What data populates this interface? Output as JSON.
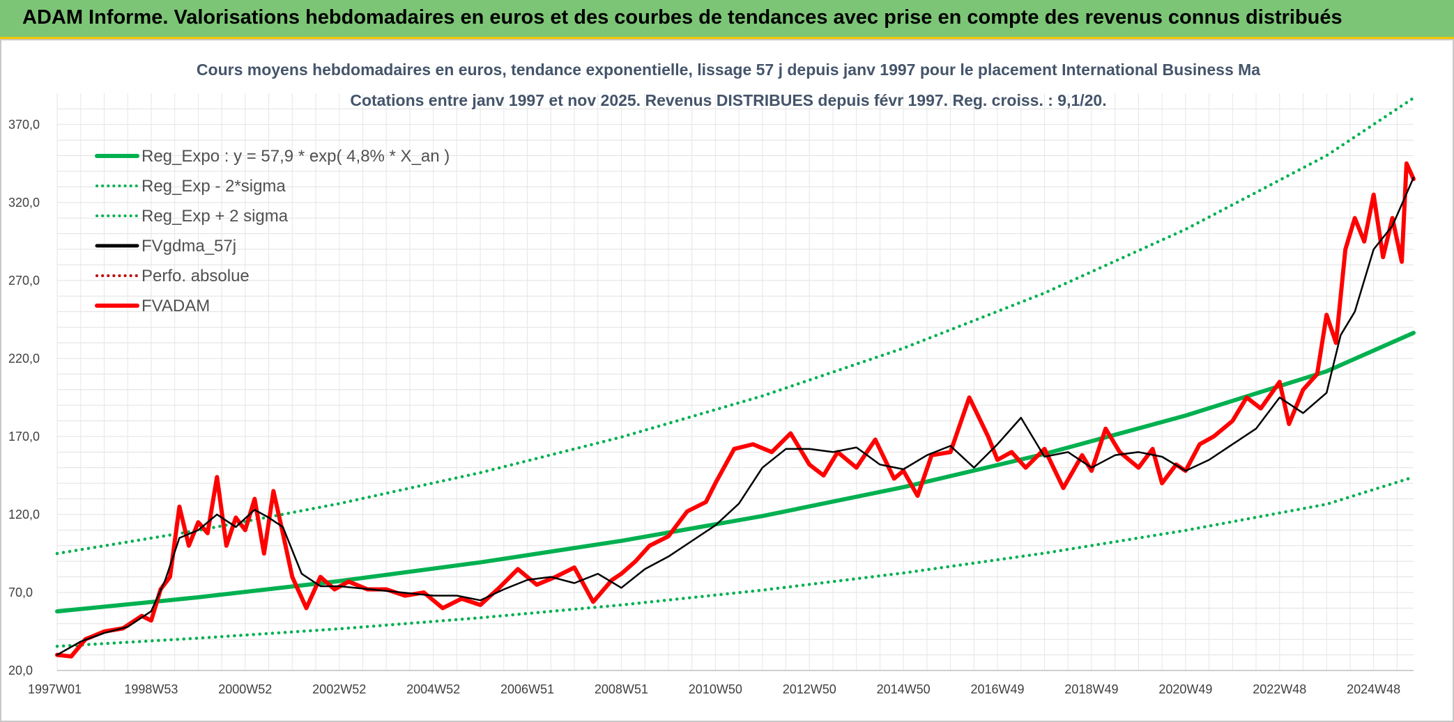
{
  "banner": {
    "title": "ADAM Informe. Valorisations hebdomadaires en euros et des courbes de tendances avec prise en compte des revenus connus distribués"
  },
  "colors": {
    "banner_bg": "#7cc576",
    "banner_border": "#f5c400",
    "reg_expo": "#00b050",
    "fvgdma": "#000000",
    "fvadam": "#ff0000",
    "perfo": "#c00000"
  },
  "chart_data": {
    "type": "line",
    "title_lines": [
      "Cours moyens hebdomadaires en euros, tendance exponentielle, lissage 57 j depuis janv 1997 pour le placement International Business Ma",
      "Cotations entre janv 1997 et nov 2025. Revenus DISTRIBUES depuis févr 1997. Reg. croiss. : 9,1/20."
    ],
    "x_range": [
      1997.0,
      2025.85
    ],
    "x_ticks": [
      {
        "label": "1997W01",
        "x": 1997.0
      },
      {
        "label": "1998W53",
        "x": 1999.0
      },
      {
        "label": "2000W52",
        "x": 2001.0
      },
      {
        "label": "2002W52",
        "x": 2003.0
      },
      {
        "label": "2004W52",
        "x": 2005.0
      },
      {
        "label": "2006W51",
        "x": 2007.0
      },
      {
        "label": "2008W51",
        "x": 2009.0
      },
      {
        "label": "2010W50",
        "x": 2011.0
      },
      {
        "label": "2012W50",
        "x": 2013.0
      },
      {
        "label": "2014W50",
        "x": 2015.0
      },
      {
        "label": "2016W49",
        "x": 2017.0
      },
      {
        "label": "2018W49",
        "x": 2019.0
      },
      {
        "label": "2020W49",
        "x": 2021.0
      },
      {
        "label": "2022W48",
        "x": 2023.0
      },
      {
        "label": "2024W48",
        "x": 2025.0
      }
    ],
    "y_range": [
      20,
      390
    ],
    "y_ticks": [
      {
        "label": "20,0",
        "y": 20
      },
      {
        "label": "70,0",
        "y": 70
      },
      {
        "label": "120,0",
        "y": 120
      },
      {
        "label": "170,0",
        "y": 170
      },
      {
        "label": "220,0",
        "y": 220
      },
      {
        "label": "270,0",
        "y": 270
      },
      {
        "label": "320,0",
        "y": 320
      },
      {
        "label": "370,0",
        "y": 370
      }
    ],
    "grid": true,
    "legend_position": "top-left",
    "series": [
      {
        "name": "Reg_Expo : y = 57,9 * exp( 4,8% *  X_an )",
        "role": "reg",
        "style": "solid-thick",
        "color": "#00b050",
        "x": [
          1997.0,
          2000.0,
          2003.0,
          2006.0,
          2009.0,
          2012.0,
          2015.0,
          2018.0,
          2021.0,
          2024.0,
          2025.85
        ],
        "y": [
          57.9,
          66.9,
          77.3,
          89.3,
          103.1,
          119.0,
          137.5,
          158.8,
          183.4,
          211.8,
          236.4
        ]
      },
      {
        "name": "Reg_Exp - 2*sigma",
        "role": "reg",
        "style": "dotted",
        "color": "#00b050",
        "x": [
          1997.0,
          2000.0,
          2003.0,
          2006.0,
          2009.0,
          2012.0,
          2015.0,
          2018.0,
          2021.0,
          2024.0,
          2025.85
        ],
        "y": [
          35.5,
          40.7,
          46.7,
          53.8,
          62.0,
          71.5,
          82.5,
          95.2,
          109.8,
          126.6,
          144.0
        ]
      },
      {
        "name": "Reg_Exp + 2 sigma",
        "role": "reg",
        "style": "dotted",
        "color": "#00b050",
        "x": [
          1997.0,
          2000.0,
          2003.0,
          2006.0,
          2009.0,
          2012.0,
          2015.0,
          2018.0,
          2021.0,
          2024.0,
          2025.85
        ],
        "y": [
          95.0,
          109.8,
          127.0,
          146.8,
          169.6,
          196.0,
          226.6,
          262.0,
          302.8,
          350.1,
          387.0
        ]
      },
      {
        "name": "FVgdma_57j",
        "role": "price",
        "style": "solid",
        "color": "#000000",
        "x": [
          1997.0,
          1997.5,
          1998.0,
          1998.5,
          1999.0,
          1999.3,
          1999.6,
          2000.0,
          2000.4,
          2000.8,
          2001.2,
          2001.5,
          2001.8,
          2002.2,
          2002.6,
          2003.0,
          2004.0,
          2005.0,
          2005.5,
          2006.0,
          2006.5,
          2007.0,
          2007.5,
          2008.0,
          2008.5,
          2009.0,
          2009.5,
          2010.0,
          2010.5,
          2011.0,
          2011.5,
          2012.0,
          2012.5,
          2013.0,
          2013.5,
          2014.0,
          2014.5,
          2015.0,
          2015.5,
          2016.0,
          2016.5,
          2017.0,
          2017.5,
          2018.0,
          2018.5,
          2019.0,
          2019.5,
          2020.0,
          2020.5,
          2021.0,
          2021.5,
          2022.0,
          2022.5,
          2023.0,
          2023.5,
          2024.0,
          2024.3,
          2024.6,
          2025.0,
          2025.4,
          2025.85
        ],
        "y": [
          30.0,
          38.5,
          44.0,
          48.0,
          58.0,
          78.0,
          105.0,
          110.0,
          120.0,
          112.0,
          123.0,
          118.0,
          112.0,
          82.0,
          74.0,
          74.0,
          71.0,
          68.0,
          68.0,
          65.0,
          72.0,
          78.0,
          80.0,
          76.0,
          82.0,
          73.0,
          85.0,
          93.0,
          103.0,
          113.0,
          127.0,
          150.0,
          162.0,
          162.0,
          160.0,
          163.0,
          152.0,
          149.0,
          158.0,
          164.0,
          150.0,
          165.0,
          182.0,
          157.0,
          160.0,
          150.0,
          158.0,
          160.0,
          157.0,
          148.0,
          155.0,
          165.0,
          175.0,
          195.0,
          185.0,
          198.0,
          235.0,
          250.0,
          290.0,
          305.0,
          336.0
        ]
      },
      {
        "name": "Perfo. absolue",
        "role": "price",
        "style": "dotted",
        "color": "#c00000",
        "x": [
          1997.0,
          1997.5,
          1998.0,
          1998.5,
          1999.0,
          1999.3,
          1999.6,
          2000.0,
          2000.4,
          2000.8,
          2001.2,
          2001.5,
          2001.8,
          2002.2,
          2002.6,
          2003.0,
          2004.0,
          2005.0,
          2005.5,
          2006.0,
          2006.5,
          2007.0,
          2007.5,
          2008.0,
          2008.5,
          2009.0,
          2009.5,
          2010.0,
          2010.5,
          2011.0,
          2011.5,
          2012.0,
          2012.5,
          2013.0,
          2013.5,
          2014.0,
          2014.5,
          2015.0,
          2015.5,
          2016.0,
          2016.5,
          2017.0,
          2017.5,
          2018.0,
          2018.5,
          2019.0,
          2019.5,
          2020.0,
          2020.5,
          2021.0,
          2021.5,
          2022.0,
          2022.5,
          2023.0,
          2023.5,
          2024.0,
          2024.3,
          2024.6,
          2025.0,
          2025.4,
          2025.85
        ],
        "y": [
          30.0,
          38.5,
          44.0,
          48.0,
          58.0,
          78.0,
          105.0,
          110.0,
          120.0,
          112.0,
          123.0,
          118.0,
          112.0,
          82.0,
          74.0,
          74.0,
          71.0,
          68.0,
          68.0,
          65.0,
          72.0,
          78.0,
          80.0,
          76.0,
          82.0,
          73.0,
          85.0,
          93.0,
          103.0,
          113.0,
          127.0,
          150.0,
          162.0,
          162.0,
          160.0,
          163.0,
          152.0,
          149.0,
          158.0,
          164.0,
          150.0,
          165.0,
          182.0,
          157.0,
          160.0,
          150.0,
          158.0,
          160.0,
          157.0,
          148.0,
          155.0,
          165.0,
          175.0,
          195.0,
          185.0,
          198.0,
          235.0,
          250.0,
          290.0,
          305.0,
          336.0
        ]
      },
      {
        "name": "FVADAM",
        "role": "price",
        "style": "solid-thick",
        "color": "#ff0000",
        "x": [
          1997.0,
          1997.3,
          1997.6,
          1998.0,
          1998.4,
          1998.8,
          1999.0,
          1999.2,
          1999.4,
          1999.6,
          1999.8,
          2000.0,
          2000.2,
          2000.4,
          2000.6,
          2000.8,
          2001.0,
          2001.2,
          2001.4,
          2001.6,
          2001.8,
          2002.0,
          2002.3,
          2002.6,
          2002.9,
          2003.2,
          2003.6,
          2004.0,
          2004.4,
          2004.8,
          2005.2,
          2005.6,
          2006.0,
          2006.4,
          2006.8,
          2007.2,
          2007.6,
          2008.0,
          2008.4,
          2008.8,
          2009.0,
          2009.3,
          2009.6,
          2010.0,
          2010.4,
          2010.8,
          2011.0,
          2011.4,
          2011.8,
          2012.2,
          2012.6,
          2013.0,
          2013.3,
          2013.6,
          2014.0,
          2014.4,
          2014.8,
          2015.0,
          2015.3,
          2015.6,
          2016.0,
          2016.4,
          2016.8,
          2017.0,
          2017.3,
          2017.6,
          2018.0,
          2018.4,
          2018.8,
          2019.0,
          2019.3,
          2019.6,
          2020.0,
          2020.3,
          2020.5,
          2020.8,
          2021.0,
          2021.3,
          2021.6,
          2022.0,
          2022.3,
          2022.6,
          2023.0,
          2023.2,
          2023.5,
          2023.8,
          2024.0,
          2024.2,
          2024.4,
          2024.6,
          2024.8,
          2025.0,
          2025.2,
          2025.4,
          2025.6,
          2025.7,
          2025.85
        ],
        "y": [
          30.0,
          29.0,
          40.0,
          45.0,
          47.0,
          55.0,
          52.0,
          72.0,
          80.0,
          125.0,
          100.0,
          115.0,
          108.0,
          144.0,
          100.0,
          118.0,
          110.0,
          130.0,
          95.0,
          135.0,
          108.0,
          80.0,
          60.0,
          80.0,
          72.0,
          77.0,
          72.0,
          72.0,
          68.0,
          70.0,
          60.0,
          66.0,
          62.0,
          73.0,
          85.0,
          75.0,
          80.0,
          86.0,
          64.0,
          78.0,
          82.0,
          90.0,
          100.0,
          106.0,
          122.0,
          128.0,
          140.0,
          162.0,
          165.0,
          160.0,
          172.0,
          152.0,
          145.0,
          160.0,
          150.0,
          168.0,
          143.0,
          148.0,
          132.0,
          158.0,
          160.0,
          195.0,
          170.0,
          155.0,
          160.0,
          150.0,
          162.0,
          137.0,
          158.0,
          148.0,
          175.0,
          160.0,
          150.0,
          162.0,
          140.0,
          152.0,
          148.0,
          165.0,
          170.0,
          180.0,
          195.0,
          188.0,
          205.0,
          178.0,
          200.0,
          210.0,
          248.0,
          230.0,
          290.0,
          310.0,
          295.0,
          325.0,
          285.0,
          310.0,
          282.0,
          345.0,
          335.0
        ]
      }
    ]
  }
}
